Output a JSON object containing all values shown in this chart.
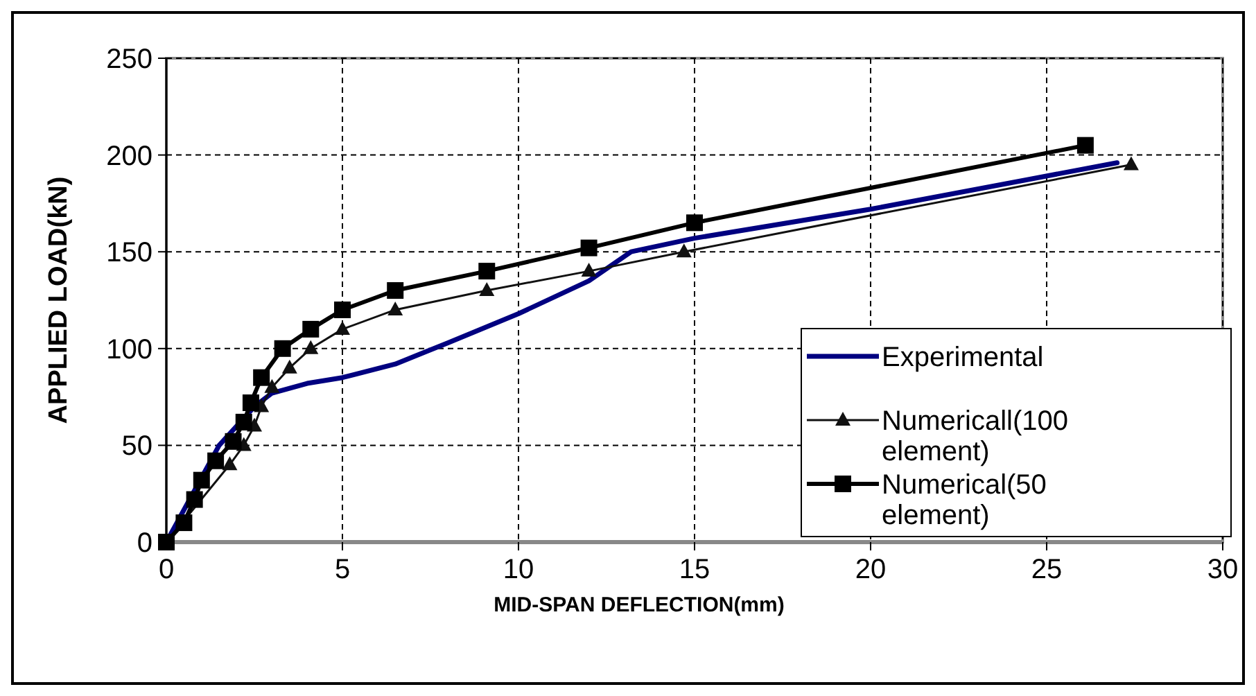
{
  "chart_data": {
    "type": "line",
    "xlabel": "MID-SPAN DEFLECTION(mm)",
    "ylabel": "APPLIED LOAD(kN)",
    "xlim": [
      0,
      30
    ],
    "ylim": [
      0,
      250
    ],
    "xticks": [
      0,
      5,
      10,
      15,
      20,
      25,
      30
    ],
    "yticks": [
      0,
      50,
      100,
      150,
      200,
      250
    ],
    "grid": true,
    "legend": "bottom right",
    "series": [
      {
        "name": "Experimental",
        "color": "#000080",
        "marker": "none",
        "x": [
          0,
          1.5,
          2.5,
          3,
          4,
          5,
          6.5,
          8,
          10,
          12,
          13.2,
          15,
          20,
          27
        ],
        "values": [
          0,
          50,
          70,
          77,
          82,
          85,
          92,
          103,
          118,
          135,
          150,
          157,
          172,
          196
        ]
      },
      {
        "name": "Numericall(100 element)",
        "color": "#111111",
        "marker": "triangle",
        "x": [
          0,
          0.6,
          1.2,
          1.8,
          2.2,
          2.5,
          2.7,
          3,
          3.5,
          4.1,
          5,
          6.5,
          9.1,
          12,
          14.7,
          27.4
        ],
        "values": [
          0,
          null,
          null,
          40,
          50,
          60,
          70,
          80,
          90,
          100,
          110,
          120,
          130,
          140,
          150,
          195
        ]
      },
      {
        "name": "Numerical(50 element)",
        "color": "#000000",
        "marker": "square",
        "x": [
          0,
          0.5,
          0.8,
          1,
          1.4,
          1.9,
          2.2,
          2.4,
          2.7,
          3.3,
          4.1,
          5,
          6.5,
          9.1,
          12,
          15,
          26.1
        ],
        "values": [
          0,
          10,
          22,
          32,
          42,
          52,
          62,
          72,
          85,
          100,
          110,
          120,
          130,
          140,
          152,
          165,
          205
        ]
      }
    ]
  }
}
